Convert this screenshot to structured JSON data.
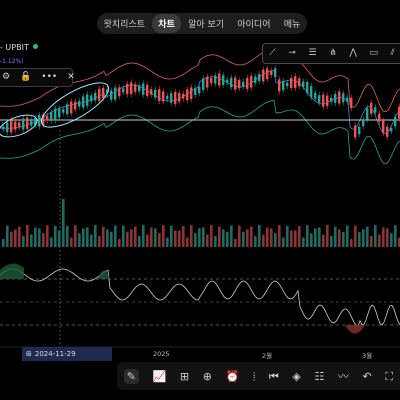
{
  "nav": {
    "tabs": [
      {
        "label": "왓치리스트",
        "active": false
      },
      {
        "label": "차트",
        "active": true
      },
      {
        "label": "알아 보기",
        "active": false
      },
      {
        "label": "아이디어",
        "active": false
      },
      {
        "label": "메뉴",
        "active": false
      }
    ]
  },
  "symbol": {
    "exchange_label": "- UPBIT",
    "change_text": "-1.12%)",
    "status_color": "#2fbf71"
  },
  "chart_controls": {
    "icons": [
      "settings-icon",
      "lock-icon",
      "more-icon",
      "close-icon"
    ]
  },
  "drawing_toolbar": {
    "icons": [
      "trend-line-icon",
      "horizontal-ray-icon",
      "fib-retracement-icon",
      "pitchfork-icon",
      "pattern-icon",
      "rectangle-icon",
      "parallel-channel-icon"
    ]
  },
  "xaxis": {
    "selected_date": "2024-11-29",
    "labels": [
      "2025",
      "2월",
      "3월"
    ]
  },
  "bottom_toolbar": {
    "icons": [
      "brush-icon",
      "indicators-icon",
      "layouts-icon",
      "add-icon",
      "alert-icon",
      "replay-icon",
      "rewind-icon",
      "layers-icon",
      "settings-sliders-icon",
      "compare-icon",
      "undo-icon",
      "fullscreen-icon"
    ]
  },
  "colors": {
    "up": "#26a69a",
    "down": "#ef5350",
    "bb_upper": "#e06464",
    "bb_lower": "#26a69a",
    "bb_mid": "#4d7fd6",
    "highlight": "#9fe7ff",
    "oscillator": "#cfcfcf"
  }
}
